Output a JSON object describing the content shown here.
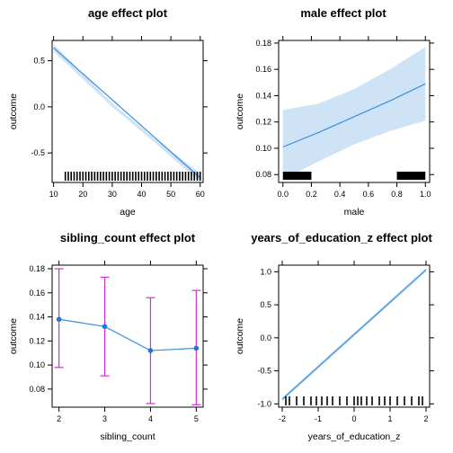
{
  "chart_data": [
    {
      "type": "line",
      "title": "age effect plot",
      "xlabel": "age",
      "ylabel": "outcome",
      "xlim": [
        9.5,
        61
      ],
      "ylim": [
        -0.82,
        0.72
      ],
      "xticks": [
        10,
        20,
        30,
        40,
        50,
        60
      ],
      "yticks": [
        -0.5,
        0.0,
        0.5
      ],
      "ytick_labels": [
        "-0.5",
        "0.0",
        "0.5"
      ],
      "line": {
        "x": [
          10,
          60
        ],
        "y": [
          0.64,
          -0.77
        ]
      },
      "band": {
        "x": [
          10,
          30,
          45,
          60
        ],
        "lower": [
          0.6,
          -0.0,
          -0.4,
          -0.82
        ],
        "upper": [
          0.68,
          0.04,
          -0.36,
          -0.72
        ]
      },
      "rug": [
        14,
        15,
        16,
        17,
        18,
        19,
        20,
        21,
        22,
        23,
        24,
        25,
        26,
        27,
        28,
        29,
        30,
        31,
        32,
        33,
        34,
        35,
        36,
        37,
        38,
        39,
        40,
        41,
        42,
        43,
        44,
        45,
        46,
        47,
        48,
        49,
        50,
        51,
        52,
        53,
        54,
        55,
        56,
        57,
        58,
        59,
        60
      ],
      "colors": {
        "line": "#3b8fd9",
        "band": "#cfe3f7"
      }
    },
    {
      "type": "line",
      "title": "male effect plot",
      "xlabel": "male",
      "ylabel": "outcome",
      "xlim": [
        -0.03,
        1.03
      ],
      "ylim": [
        0.074,
        0.182
      ],
      "xticks": [
        0.0,
        0.2,
        0.4,
        0.6,
        0.8,
        1.0
      ],
      "xtick_labels": [
        "0.0",
        "0.2",
        "0.4",
        "0.6",
        "0.8",
        "1.0"
      ],
      "yticks": [
        0.08,
        0.1,
        0.12,
        0.14,
        0.16,
        0.18
      ],
      "ytick_labels": [
        "0.08",
        "0.10",
        "0.12",
        "0.14",
        "0.16",
        "0.18"
      ],
      "line": {
        "x": [
          0,
          0.25,
          0.5,
          0.75,
          1.0
        ],
        "y": [
          0.101,
          0.112,
          0.124,
          0.136,
          0.149
        ]
      },
      "band": {
        "x": [
          0,
          0.25,
          0.5,
          0.75,
          1.0
        ],
        "lower": [
          0.076,
          0.09,
          0.103,
          0.113,
          0.121
        ],
        "upper": [
          0.129,
          0.134,
          0.145,
          0.16,
          0.177
        ]
      },
      "rug_blocks": [
        [
          0.0,
          0.2
        ],
        [
          0.8,
          1.0
        ]
      ],
      "colors": {
        "line": "#3b8fd9",
        "band": "#cfe3f7"
      }
    },
    {
      "type": "scatter",
      "title": "sibling_count effect plot",
      "xlabel": "sibling_count",
      "ylabel": "outcome",
      "xlim": [
        1.85,
        5.15
      ],
      "ylim": [
        0.065,
        0.183
      ],
      "xticks": [
        2,
        3,
        4,
        5
      ],
      "yticks": [
        0.08,
        0.1,
        0.12,
        0.14,
        0.16,
        0.18
      ],
      "ytick_labels": [
        "0.08",
        "0.10",
        "0.12",
        "0.14",
        "0.16",
        "0.18"
      ],
      "points": {
        "x": [
          2,
          3,
          4,
          5
        ],
        "y": [
          0.138,
          0.132,
          0.112,
          0.114
        ]
      },
      "errors": {
        "lower": [
          0.098,
          0.091,
          0.068,
          0.067
        ],
        "upper": [
          0.18,
          0.173,
          0.156,
          0.162
        ]
      },
      "colors": {
        "line": "#3b8fd9",
        "point": "#1f77d4",
        "error": "#cc33cc"
      }
    },
    {
      "type": "line",
      "title": "years_of_education_z effect plot",
      "xlabel": "years_of_education_z",
      "ylabel": "outcome",
      "xlim": [
        -2.1,
        2.1
      ],
      "ylim": [
        -1.05,
        1.1
      ],
      "xticks": [
        -2,
        -1,
        0,
        1,
        2
      ],
      "yticks": [
        -1.0,
        -0.5,
        0.0,
        0.5,
        1.0
      ],
      "ytick_labels": [
        "-1.0",
        "-0.5",
        "0.0",
        "0.5",
        "1.0"
      ],
      "line": {
        "x": [
          -2,
          2
        ],
        "y": [
          -0.93,
          1.03
        ]
      },
      "band": {
        "x": [
          -2,
          2
        ],
        "lower": [
          -0.96,
          1.0
        ],
        "upper": [
          -0.9,
          1.06
        ]
      },
      "rug": [
        -1.9,
        -1.8,
        -1.6,
        -1.4,
        -1.2,
        -1.05,
        -0.9,
        -0.75,
        -0.6,
        -0.4,
        -0.2,
        0.0,
        0.1,
        0.2,
        0.35,
        0.5,
        0.7,
        0.85,
        1.0,
        1.2,
        1.4,
        1.6,
        1.8,
        1.9
      ],
      "colors": {
        "line": "#3b8fd9",
        "band": "#cfe3f7"
      }
    }
  ]
}
